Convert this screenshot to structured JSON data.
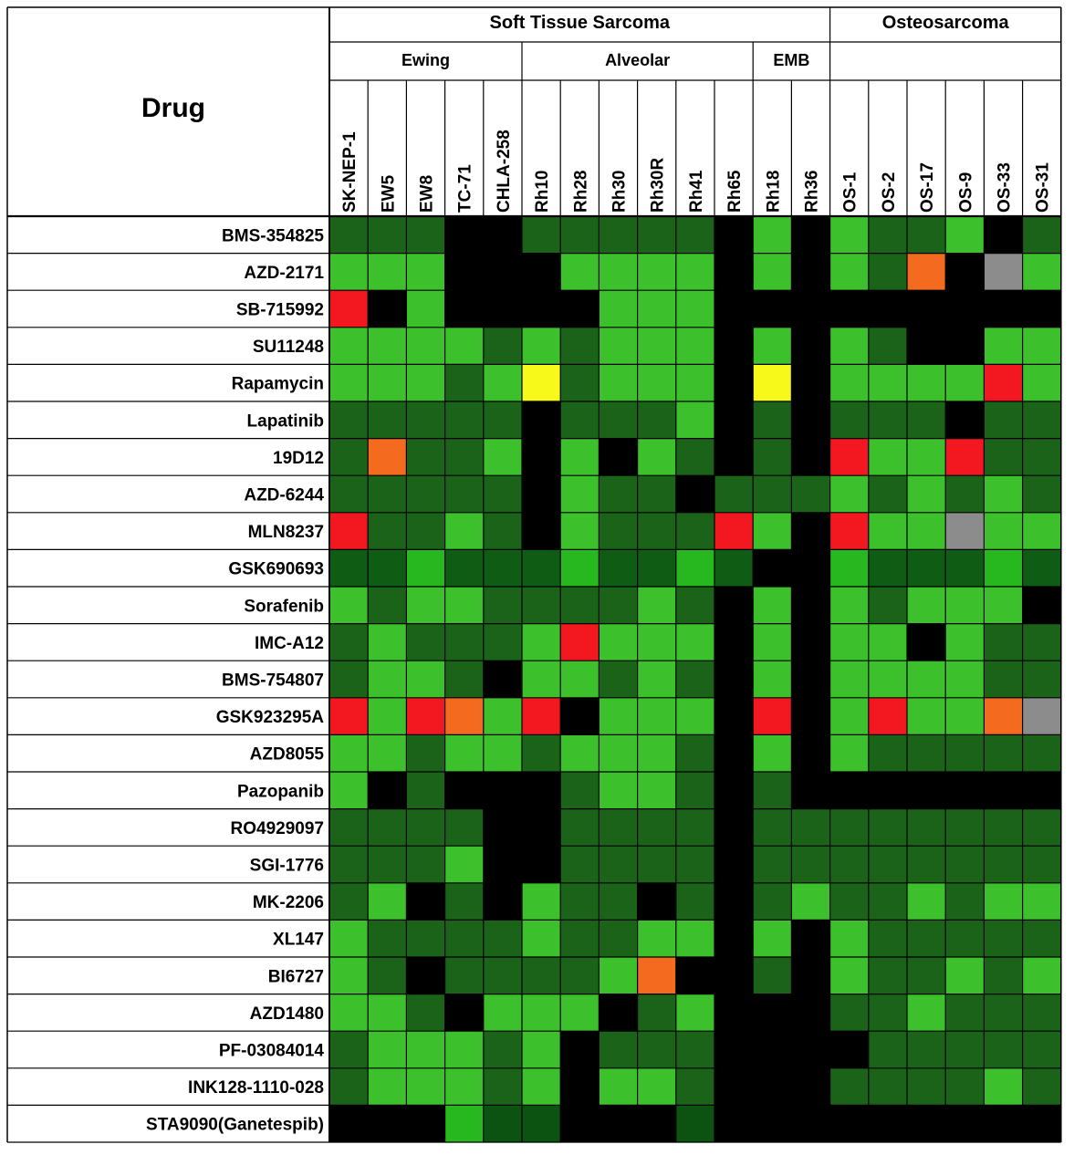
{
  "chart_data": {
    "type": "heatmap",
    "title": "",
    "corner_label": "Drug",
    "group_headers": [
      {
        "label": "Soft Tissue Sarcoma",
        "start": 0,
        "span": 13
      },
      {
        "label": "Osteosarcoma",
        "start": 13,
        "span": 6
      }
    ],
    "subgroup_headers": [
      {
        "label": "Ewing",
        "start": 0,
        "span": 5
      },
      {
        "label": "Alveolar",
        "start": 5,
        "span": 6
      },
      {
        "label": "EMB",
        "start": 11,
        "span": 2
      },
      {
        "label": "",
        "start": 13,
        "span": 6
      }
    ],
    "columns": [
      "SK-NEP-1",
      "EW5",
      "EW8",
      "TC-71",
      "CHLA-258",
      "Rh10",
      "Rh28",
      "Rh30",
      "Rh30R",
      "Rh41",
      "Rh65",
      "Rh18",
      "Rh36",
      "OS-1",
      "OS-2",
      "OS-17",
      "OS-9",
      "OS-33",
      "OS-31"
    ],
    "rows": [
      "BMS-354825",
      "AZD-2171",
      "SB-715992",
      "SU11248",
      "Rapamycin",
      "Lapatinib",
      "19D12",
      "AZD-6244",
      "MLN8237",
      "GSK690693",
      "Sorafenib",
      "IMC-A12",
      "BMS-754807",
      "GSK923295A",
      "AZD8055",
      "Pazopanib",
      "RO4929097",
      "SGI-1776",
      "MK-2206",
      "XL147",
      "BI6727",
      "AZD1480",
      "PF-03084014",
      "INK128-1110-028",
      "STA9090(Ganetespib)"
    ],
    "palette": {
      "L": "#3cc12c",
      "D": "#1b6318",
      "K": "#000000",
      "R": "#f31820",
      "O": "#f46a1e",
      "Y": "#f6f91a",
      "G": "#8c8c8c",
      "g1": "#0f5c14",
      "g2": "#27b81f",
      "g3": "#0c5210"
    },
    "cells": [
      [
        "D",
        "D",
        "D",
        "K",
        "K",
        "D",
        "D",
        "D",
        "D",
        "D",
        "K",
        "L",
        "K",
        "L",
        "D",
        "D",
        "L",
        "K",
        "D"
      ],
      [
        "L",
        "L",
        "L",
        "K",
        "K",
        "K",
        "L",
        "L",
        "L",
        "L",
        "K",
        "L",
        "K",
        "L",
        "D",
        "O",
        "K",
        "G",
        "L"
      ],
      [
        "R",
        "K",
        "L",
        "K",
        "K",
        "K",
        "K",
        "L",
        "L",
        "L",
        "K",
        "K",
        "K",
        "K",
        "K",
        "K",
        "K",
        "K",
        "K"
      ],
      [
        "L",
        "L",
        "L",
        "L",
        "D",
        "L",
        "D",
        "L",
        "L",
        "L",
        "K",
        "L",
        "K",
        "L",
        "D",
        "K",
        "K",
        "L",
        "L"
      ],
      [
        "L",
        "L",
        "L",
        "D",
        "L",
        "Y",
        "D",
        "L",
        "L",
        "L",
        "K",
        "Y",
        "K",
        "L",
        "L",
        "L",
        "L",
        "R",
        "L"
      ],
      [
        "D",
        "D",
        "D",
        "D",
        "D",
        "K",
        "D",
        "D",
        "D",
        "L",
        "K",
        "D",
        "K",
        "D",
        "D",
        "D",
        "K",
        "D",
        "D"
      ],
      [
        "D",
        "O",
        "D",
        "D",
        "L",
        "K",
        "L",
        "K",
        "L",
        "D",
        "K",
        "D",
        "K",
        "R",
        "L",
        "L",
        "R",
        "D",
        "D"
      ],
      [
        "D",
        "D",
        "D",
        "D",
        "D",
        "K",
        "L",
        "D",
        "D",
        "K",
        "D",
        "D",
        "D",
        "L",
        "D",
        "L",
        "D",
        "L",
        "D"
      ],
      [
        "R",
        "D",
        "D",
        "L",
        "D",
        "K",
        "L",
        "D",
        "D",
        "D",
        "R",
        "L",
        "K",
        "R",
        "L",
        "L",
        "G",
        "L",
        "L"
      ],
      [
        "g1",
        "g1",
        "g2",
        "g1",
        "g1",
        "g1",
        "g2",
        "g1",
        "g1",
        "g2",
        "g1",
        "K",
        "K",
        "g2",
        "g1",
        "g1",
        "g1",
        "g2",
        "g1"
      ],
      [
        "L",
        "D",
        "L",
        "L",
        "D",
        "D",
        "D",
        "D",
        "L",
        "D",
        "K",
        "L",
        "K",
        "L",
        "D",
        "L",
        "L",
        "L",
        "K"
      ],
      [
        "D",
        "L",
        "D",
        "D",
        "D",
        "L",
        "R",
        "L",
        "L",
        "L",
        "K",
        "L",
        "K",
        "L",
        "L",
        "K",
        "L",
        "D",
        "D"
      ],
      [
        "D",
        "L",
        "L",
        "D",
        "K",
        "L",
        "L",
        "D",
        "L",
        "D",
        "K",
        "L",
        "K",
        "L",
        "L",
        "L",
        "L",
        "D",
        "D"
      ],
      [
        "R",
        "L",
        "R",
        "O",
        "L",
        "R",
        "K",
        "L",
        "L",
        "L",
        "K",
        "R",
        "K",
        "L",
        "R",
        "L",
        "L",
        "O",
        "G"
      ],
      [
        "L",
        "L",
        "D",
        "L",
        "L",
        "D",
        "L",
        "L",
        "L",
        "D",
        "K",
        "L",
        "K",
        "L",
        "D",
        "D",
        "D",
        "D",
        "D"
      ],
      [
        "L",
        "K",
        "D",
        "K",
        "K",
        "K",
        "D",
        "L",
        "L",
        "D",
        "K",
        "D",
        "K",
        "K",
        "K",
        "K",
        "K",
        "K",
        "K"
      ],
      [
        "D",
        "D",
        "D",
        "D",
        "K",
        "K",
        "D",
        "D",
        "D",
        "D",
        "K",
        "D",
        "D",
        "D",
        "D",
        "D",
        "D",
        "D",
        "D"
      ],
      [
        "D",
        "D",
        "D",
        "L",
        "K",
        "K",
        "D",
        "D",
        "D",
        "D",
        "K",
        "D",
        "D",
        "D",
        "D",
        "D",
        "D",
        "D",
        "D"
      ],
      [
        "D",
        "L",
        "K",
        "D",
        "K",
        "L",
        "D",
        "D",
        "K",
        "D",
        "K",
        "D",
        "L",
        "D",
        "D",
        "L",
        "D",
        "L",
        "L"
      ],
      [
        "L",
        "D",
        "D",
        "D",
        "D",
        "L",
        "D",
        "D",
        "L",
        "L",
        "K",
        "L",
        "K",
        "L",
        "D",
        "D",
        "D",
        "D",
        "D"
      ],
      [
        "L",
        "D",
        "K",
        "D",
        "D",
        "D",
        "D",
        "L",
        "O",
        "K",
        "K",
        "D",
        "K",
        "L",
        "D",
        "D",
        "L",
        "D",
        "L"
      ],
      [
        "L",
        "L",
        "D",
        "K",
        "L",
        "L",
        "L",
        "K",
        "D",
        "L",
        "K",
        "K",
        "K",
        "D",
        "D",
        "L",
        "D",
        "D",
        "D"
      ],
      [
        "D",
        "L",
        "L",
        "L",
        "D",
        "L",
        "K",
        "D",
        "D",
        "D",
        "K",
        "K",
        "K",
        "K",
        "D",
        "D",
        "D",
        "D",
        "D"
      ],
      [
        "D",
        "L",
        "L",
        "L",
        "D",
        "L",
        "K",
        "L",
        "L",
        "D",
        "K",
        "K",
        "K",
        "D",
        "D",
        "D",
        "D",
        "L",
        "D"
      ],
      [
        "K",
        "K",
        "K",
        "g2",
        "g3",
        "g3",
        "K",
        "K",
        "K",
        "g3",
        "K",
        "K",
        "K",
        "K",
        "K",
        "K",
        "K",
        "K",
        "K"
      ]
    ]
  }
}
